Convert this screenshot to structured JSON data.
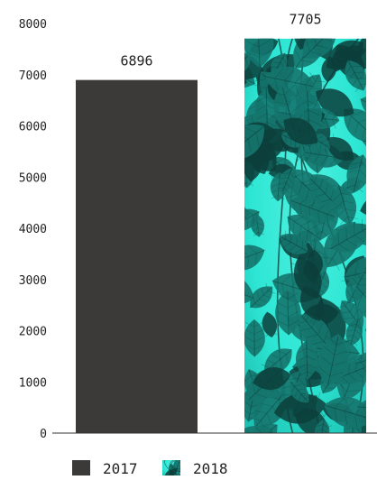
{
  "chart_data": {
    "type": "bar",
    "categories": [
      "2017",
      "2018"
    ],
    "values": [
      6896,
      7705
    ],
    "data_labels": [
      "6896",
      "7705"
    ],
    "ylim": [
      0,
      8000
    ],
    "yticks": [
      0,
      1000,
      2000,
      3000,
      4000,
      5000,
      6000,
      7000,
      8000
    ],
    "grid": false,
    "legend": {
      "position": "bottom-left",
      "items": [
        {
          "label": "2017",
          "color": "#3b3a38",
          "fill": "solid"
        },
        {
          "label": "2018",
          "color": "#2ee6d4",
          "fill": "leaf-photo"
        }
      ]
    },
    "colors": {
      "bar_2017": "#3b3a38",
      "bar_2018_base": "#2ee6d4",
      "bar_2018_leaf": "#15766e",
      "bar_2018_leaf_dark": "#0c3f3b",
      "axis": "#333333",
      "text": "#222222"
    }
  }
}
